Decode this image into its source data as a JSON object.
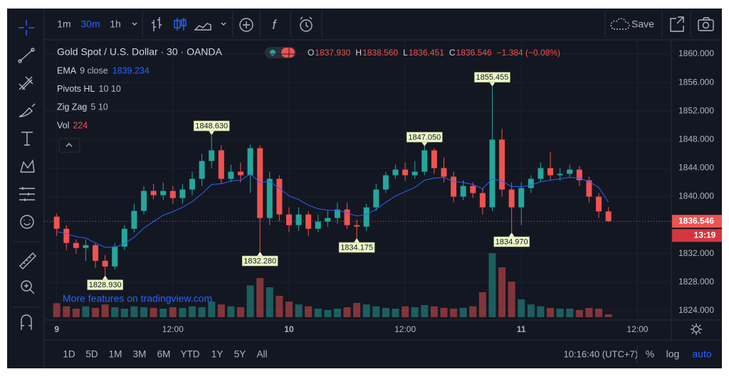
{
  "ui": {
    "intervals": [
      "1m",
      "30m",
      "1h"
    ],
    "active_interval": 1,
    "save": "Save",
    "ranges": [
      "1D",
      "5D",
      "1M",
      "3M",
      "6M",
      "YTD",
      "1Y",
      "5Y",
      "All"
    ],
    "clock": "10:16:40 (UTC+7)",
    "scale_buttons": [
      "%",
      "log",
      "auto"
    ],
    "active_scale_button": 2,
    "watermark": "More features on tradingview.com"
  },
  "chart_data": {
    "type": "candlestick",
    "title": "Gold Spot / U.S. Dollar · 30 · OANDA",
    "ohlc_legend": [
      {
        "key": "O",
        "value": "1837.930"
      },
      {
        "key": "H",
        "value": "1838.560"
      },
      {
        "key": "L",
        "value": "1836.451"
      },
      {
        "key": "C",
        "value": "1836.546"
      }
    ],
    "change": "−1.384 (−0.08%)",
    "countdown": "13:19",
    "up_color": "#26a69a",
    "down_color": "#ef5350",
    "grid": true,
    "log_scale": false,
    "xlim": [
      -1.3,
      63.5
    ],
    "xticks": [
      {
        "value": 0,
        "label": "9"
      },
      {
        "value": 12,
        "label": "12:00"
      },
      {
        "value": 24,
        "label": "10"
      },
      {
        "value": 36,
        "label": "12:00"
      },
      {
        "value": 48,
        "label": "11"
      },
      {
        "value": 60,
        "label": "12:00"
      }
    ],
    "ylim": [
      1822.7,
      1862.0
    ],
    "yticks": [
      {
        "value": 1824,
        "label": "1824.000"
      },
      {
        "value": 1828,
        "label": "1828.000"
      },
      {
        "value": 1832,
        "label": "1832.000"
      },
      {
        "value": 1840,
        "label": "1840.000"
      },
      {
        "value": 1844,
        "label": "1844.000"
      },
      {
        "value": 1848,
        "label": "1848.000"
      },
      {
        "value": 1852,
        "label": "1852.000"
      },
      {
        "value": 1856,
        "label": "1856.000"
      },
      {
        "value": 1860,
        "label": "1860.000"
      }
    ],
    "open": [
      1837.2,
      1835.5,
      1833.5,
      1832.8,
      1833.2,
      1831,
      1830.2,
      1833,
      1835.5,
      1838,
      1840.8,
      1840.2,
      1840.8,
      1839.8,
      1841,
      1842.5,
      1845,
      1846.5,
      1842.5,
      1843.5,
      1843,
      1846.8,
      1837,
      1842.5,
      1837.5,
      1836,
      1837.5,
      1835.5,
      1836.5,
      1837,
      1838.2,
      1836,
      1835.8,
      1838.5,
      1841,
      1843,
      1843.8,
      1843,
      1843.5,
      1846.5,
      1844,
      1842.8,
      1840,
      1841.5,
      1840.5,
      1838.5,
      1848,
      1841,
      1838.5,
      1841.2,
      1842.5,
      1844,
      1843,
      1843.2,
      1843.8,
      1842.3,
      1840,
      1837.93
    ],
    "high": [
      1837.6,
      1836,
      1834,
      1834,
      1833.5,
      1831.8,
      1833.5,
      1836,
      1839,
      1841.5,
      1841.8,
      1842,
      1841.5,
      1841.8,
      1843.5,
      1846,
      1848.63,
      1847.2,
      1844.5,
      1844.8,
      1847.3,
      1847.2,
      1843.5,
      1843,
      1838.5,
      1838.5,
      1838,
      1837.5,
      1838,
      1839.2,
      1839.2,
      1836.8,
      1839,
      1841.8,
      1843.5,
      1844.5,
      1844.8,
      1845,
      1847.05,
      1846.8,
      1845.5,
      1843.5,
      1842.3,
      1842,
      1841.2,
      1855.455,
      1849.5,
      1842,
      1842,
      1843,
      1844.8,
      1846.3,
      1844,
      1844.5,
      1844.3,
      1842.8,
      1840.5,
      1838.56
    ],
    "low": [
      1834.5,
      1832.5,
      1832,
      1831,
      1830,
      1828.93,
      1829.8,
      1832.5,
      1835,
      1837.5,
      1839.6,
      1839.5,
      1839,
      1839,
      1840.2,
      1841.5,
      1844,
      1841.8,
      1842,
      1842,
      1840.5,
      1832.28,
      1836,
      1836.5,
      1835,
      1835.2,
      1834.5,
      1835,
      1835.8,
      1836.2,
      1835.5,
      1834.175,
      1835.2,
      1838,
      1840.5,
      1842.5,
      1842.2,
      1842.5,
      1843,
      1843.2,
      1842,
      1839.2,
      1839.5,
      1839.8,
      1837.5,
      1838,
      1840,
      1834.97,
      1836,
      1840.5,
      1842,
      1842.3,
      1842.2,
      1842.8,
      1841.5,
      1839.2,
      1837,
      1836.451
    ],
    "close": [
      1835.5,
      1833.5,
      1832.8,
      1833.2,
      1831,
      1830.2,
      1833,
      1835.5,
      1838,
      1840.8,
      1840.2,
      1840.8,
      1839.8,
      1841,
      1842.5,
      1845,
      1846.5,
      1842.5,
      1843.5,
      1843,
      1846.8,
      1837,
      1842.5,
      1837.5,
      1836,
      1837.5,
      1835.5,
      1836.5,
      1837,
      1838.2,
      1836,
      1835.8,
      1838.5,
      1841,
      1843,
      1843.8,
      1843,
      1843.5,
      1846.5,
      1844,
      1842.8,
      1840,
      1841.5,
      1840.5,
      1838.5,
      1848,
      1841,
      1838.5,
      1841.2,
      1842.5,
      1844,
      1843,
      1843.2,
      1843.8,
      1842.3,
      1840,
      1837.93,
      1836.546
    ],
    "volume_lim": [
      0,
      5600
    ],
    "volumes": [
      1100,
      850,
      670,
      850,
      730,
      1000,
      780,
      670,
      850,
      780,
      730,
      670,
      780,
      730,
      850,
      780,
      1230,
      1000,
      850,
      780,
      2500,
      3080,
      2350,
      1680,
      1230,
      1000,
      850,
      670,
      560,
      670,
      780,
      1120,
      1000,
      850,
      730,
      670,
      850,
      780,
      950,
      850,
      730,
      670,
      730,
      850,
      1960,
      5040,
      3920,
      2800,
      1400,
      1000,
      850,
      730,
      670,
      670,
      560,
      730,
      670,
      224
    ],
    "indicators": [
      {
        "name": "EMA",
        "params": "9 close",
        "color": "#2962ff",
        "values": [
          1835.1,
          1834.8,
          1834.4,
          1834.2,
          1833.5,
          1832.9,
          1832.9,
          1833.4,
          1834.3,
          1835.6,
          1836.5,
          1837.4,
          1837.9,
          1838.5,
          1839.3,
          1840.4,
          1841.7,
          1841.8,
          1842.2,
          1842.3,
          1843.2,
          1842.0,
          1842.1,
          1841.2,
          1840.1,
          1839.6,
          1838.8,
          1838.3,
          1838.1,
          1838.1,
          1837.7,
          1837.3,
          1837.5,
          1838.2,
          1839.2,
          1840.1,
          1840.7,
          1841.3,
          1842.3,
          1842.6,
          1842.7,
          1842.1,
          1842.0,
          1841.7,
          1841.1,
          1842.5,
          1842.2,
          1841.4,
          1841.4,
          1841.6,
          1842.1,
          1842.3,
          1842.5,
          1842.7,
          1842.6,
          1842.1,
          1841.3,
          1839.234
        ]
      },
      {
        "name": "Pivots HL",
        "params": "10 10"
      },
      {
        "name": "Zig Zag",
        "params": "5 10"
      },
      {
        "name": "Vol"
      }
    ],
    "pivots": [
      {
        "x": 5,
        "y": 1828.93,
        "label": "1828.930",
        "side": "below"
      },
      {
        "x": 16,
        "y": 1848.63,
        "label": "1848.630",
        "side": "above"
      },
      {
        "x": 21,
        "y": 1832.28,
        "label": "1832.280",
        "side": "below"
      },
      {
        "x": 31,
        "y": 1834.175,
        "label": "1834.175",
        "side": "below"
      },
      {
        "x": 38,
        "y": 1847.05,
        "label": "1847.050",
        "side": "above"
      },
      {
        "x": 45,
        "y": 1855.455,
        "label": "1855.455",
        "side": "above"
      },
      {
        "x": 47,
        "y": 1834.97,
        "label": "1834.970",
        "side": "below"
      }
    ]
  }
}
